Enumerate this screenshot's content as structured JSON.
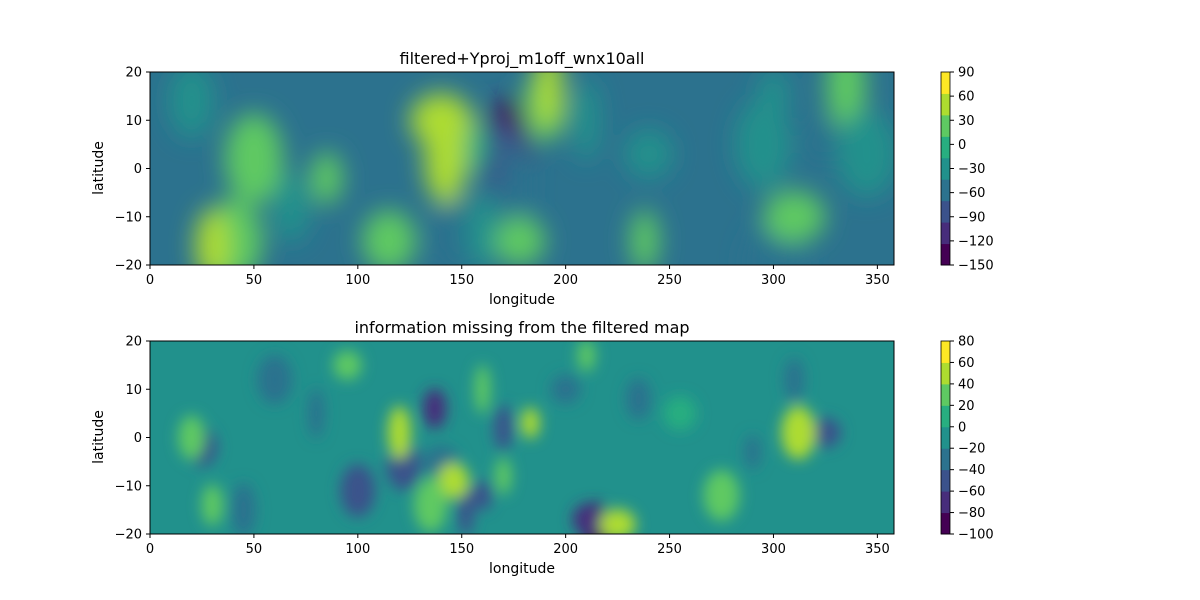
{
  "chart_data": [
    {
      "type": "heatmap",
      "subtype": "filled-contour",
      "title": "filtered+Yproj_m1off_wnx10all",
      "xlabel": "longitude",
      "ylabel": "latitude",
      "xlim": [
        0,
        358
      ],
      "ylim": [
        -20,
        20
      ],
      "x_ticks": [
        0,
        50,
        100,
        150,
        200,
        250,
        300,
        350
      ],
      "y_ticks": [
        -20,
        -10,
        0,
        10,
        20
      ],
      "colorbar": {
        "levels": [
          -150,
          -120,
          -90,
          -60,
          -30,
          0,
          30,
          60,
          90
        ],
        "tick_labels": [
          "90",
          "60",
          "30",
          "0",
          "−30",
          "−60",
          "−90",
          "−120",
          "−150"
        ],
        "colors": [
          "#440154",
          "#472d7b",
          "#3b528b",
          "#2c728e",
          "#21918c",
          "#28ae80",
          "#5ec962",
          "#addc30",
          "#fde725"
        ]
      },
      "background_band": 3,
      "features": [
        {
          "lon": 172,
          "lat": 5,
          "band": 0
        },
        {
          "lon": 170,
          "lat": 4,
          "band": 1
        },
        {
          "lon": 168,
          "lat": 2,
          "band": 2
        },
        {
          "lon": 176,
          "lat": -3,
          "band": 3
        },
        {
          "lon": 148,
          "lat": -15,
          "band": 2
        },
        {
          "lon": 150,
          "lat": -14,
          "band": 3
        },
        {
          "lon": 160,
          "lat": -13,
          "band": 4
        },
        {
          "lon": 322,
          "lat": 5,
          "band": 3
        },
        {
          "lon": 300,
          "lat": -20,
          "band": 3
        },
        {
          "lon": 150,
          "lat": 5,
          "band": 5
        },
        {
          "lon": 142,
          "lat": 4,
          "band": 6
        },
        {
          "lon": 142,
          "lat": 2,
          "band": 7
        },
        {
          "lon": 140,
          "lat": 10,
          "band": 7
        },
        {
          "lon": 190,
          "lat": 13,
          "band": 6
        },
        {
          "lon": 192,
          "lat": 17,
          "band": 7
        },
        {
          "lon": 178,
          "lat": -15,
          "band": 6
        },
        {
          "lon": 40,
          "lat": -15,
          "band": 6
        },
        {
          "lon": 30,
          "lat": -16,
          "band": 7
        },
        {
          "lon": 85,
          "lat": -2,
          "band": 6
        },
        {
          "lon": 50,
          "lat": 2,
          "band": 6
        },
        {
          "lon": 115,
          "lat": -15,
          "band": 6
        },
        {
          "lon": 238,
          "lat": -15,
          "band": 6
        },
        {
          "lon": 335,
          "lat": 17,
          "band": 6
        },
        {
          "lon": 310,
          "lat": -10,
          "band": 6
        },
        {
          "lon": 20,
          "lat": 14,
          "band": 4
        },
        {
          "lon": 210,
          "lat": 10,
          "band": 4
        },
        {
          "lon": 240,
          "lat": 3,
          "band": 4
        },
        {
          "lon": 345,
          "lat": 3,
          "band": 4
        },
        {
          "lon": 68,
          "lat": -8,
          "band": 4
        },
        {
          "lon": 300,
          "lat": 15,
          "band": 4
        },
        {
          "lon": 295,
          "lat": 5,
          "band": 4
        }
      ]
    },
    {
      "type": "heatmap",
      "subtype": "filled-contour",
      "title": "information missing from the filtered map",
      "xlabel": "longitude",
      "ylabel": "latitude",
      "xlim": [
        0,
        358
      ],
      "ylim": [
        -20,
        20
      ],
      "x_ticks": [
        0,
        50,
        100,
        150,
        200,
        250,
        300,
        350
      ],
      "y_ticks": [
        -20,
        -10,
        0,
        10,
        20
      ],
      "colorbar": {
        "levels": [
          -100,
          -80,
          -60,
          -40,
          -20,
          0,
          20,
          40,
          60,
          80
        ],
        "tick_labels": [
          "80",
          "60",
          "40",
          "20",
          "0",
          "−20",
          "−40",
          "−60",
          "−80",
          "−100"
        ],
        "colors": [
          "#440154",
          "#472d7b",
          "#3b528b",
          "#2c728e",
          "#21918c",
          "#28ae80",
          "#5ec962",
          "#addc30",
          "#fde725"
        ]
      },
      "background_band": 4,
      "features": [
        {
          "lon": 215,
          "lat": -19,
          "band": 0
        },
        {
          "lon": 212,
          "lat": -17,
          "band": 1
        },
        {
          "lon": 137,
          "lat": 6,
          "band": 1
        },
        {
          "lon": 152,
          "lat": -15,
          "band": 2
        },
        {
          "lon": 325,
          "lat": 1,
          "band": 2
        },
        {
          "lon": 122,
          "lat": -6,
          "band": 2
        },
        {
          "lon": 170,
          "lat": 2,
          "band": 2
        },
        {
          "lon": 160,
          "lat": -12,
          "band": 2
        },
        {
          "lon": 100,
          "lat": -11,
          "band": 2
        },
        {
          "lon": 25,
          "lat": -2,
          "band": 2
        },
        {
          "lon": 290,
          "lat": -3,
          "band": 3
        },
        {
          "lon": 45,
          "lat": -15,
          "band": 3
        },
        {
          "lon": 140,
          "lat": -5,
          "band": 3
        },
        {
          "lon": 235,
          "lat": 8,
          "band": 3
        },
        {
          "lon": 80,
          "lat": 5,
          "band": 3
        },
        {
          "lon": 200,
          "lat": 10,
          "band": 3
        },
        {
          "lon": 60,
          "lat": 12,
          "band": 3
        },
        {
          "lon": 310,
          "lat": 12,
          "band": 3
        },
        {
          "lon": 183,
          "lat": 3,
          "band": 7
        },
        {
          "lon": 312,
          "lat": 1,
          "band": 7
        },
        {
          "lon": 146,
          "lat": -9,
          "band": 7
        },
        {
          "lon": 170,
          "lat": -8,
          "band": 6
        },
        {
          "lon": 120,
          "lat": 1,
          "band": 7
        },
        {
          "lon": 225,
          "lat": -18,
          "band": 7
        },
        {
          "lon": 20,
          "lat": 0,
          "band": 6
        },
        {
          "lon": 160,
          "lat": 10,
          "band": 6
        },
        {
          "lon": 95,
          "lat": 15,
          "band": 6
        },
        {
          "lon": 275,
          "lat": -12,
          "band": 6
        },
        {
          "lon": 30,
          "lat": -14,
          "band": 6
        },
        {
          "lon": 210,
          "lat": 17,
          "band": 6
        },
        {
          "lon": 135,
          "lat": -14,
          "band": 6
        },
        {
          "lon": 255,
          "lat": 5,
          "band": 5
        }
      ]
    }
  ]
}
